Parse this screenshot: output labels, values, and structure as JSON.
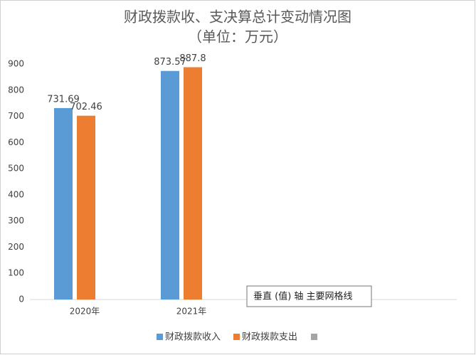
{
  "chart_data": {
    "type": "bar",
    "title": "财政拨款收、支决算总计变动情况图",
    "subtitle": "（单位：万元）",
    "categories": [
      "2020年",
      "2021年",
      null,
      null
    ],
    "series": [
      {
        "name": "财政拨款收入",
        "color": "#5b9bd5",
        "values": [
          731.69,
          873.57,
          null,
          null
        ]
      },
      {
        "name": "财政拨款支出",
        "color": "#ed7d31",
        "values": [
          702.46,
          887.8,
          null,
          null
        ]
      }
    ],
    "ylim": [
      0,
      900
    ],
    "yticks": [
      0,
      100,
      200,
      300,
      400,
      500,
      600,
      700,
      800,
      900
    ],
    "grid": false,
    "legend": "bottom",
    "tooltip": "垂直 (值) 轴 主要网格线"
  }
}
